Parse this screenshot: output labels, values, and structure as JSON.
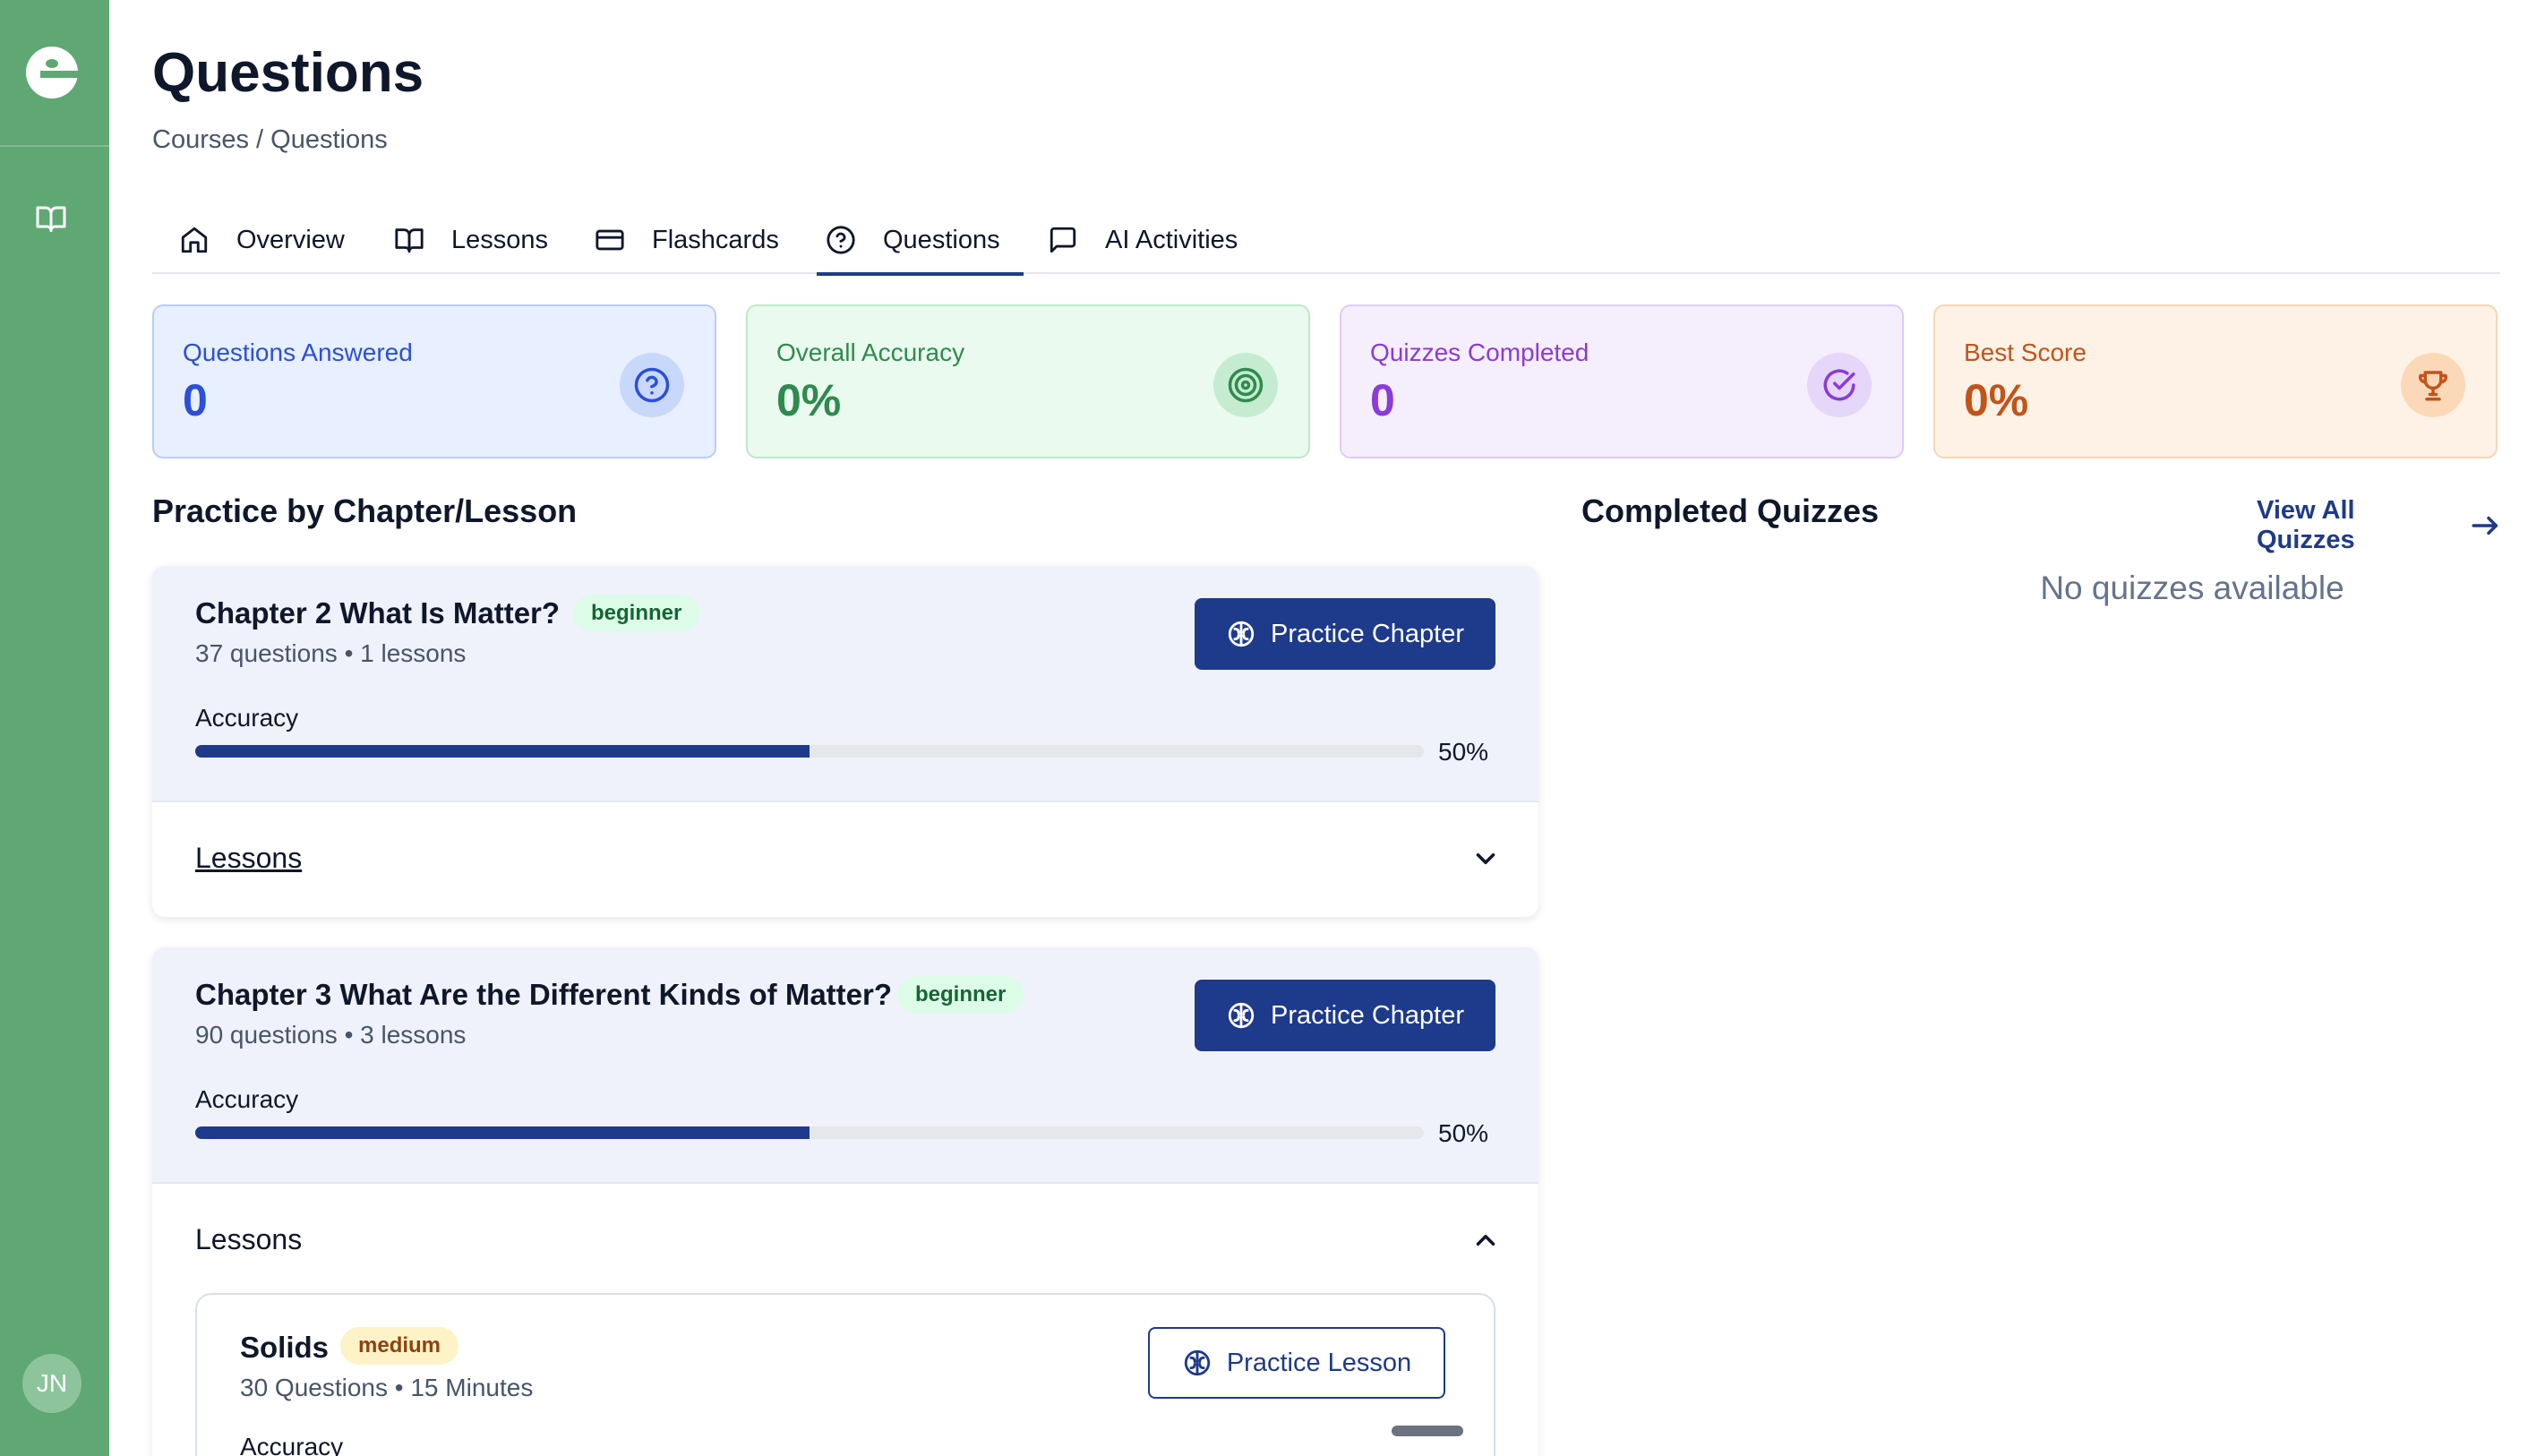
{
  "sidebar": {
    "avatar_initials": "JN",
    "icons": [
      "app-logo-icon",
      "book-icon"
    ]
  },
  "page": {
    "title": "Questions",
    "breadcrumb": "Courses / Questions"
  },
  "tabs": [
    {
      "label": "Overview",
      "icon": "home-icon",
      "active": false
    },
    {
      "label": "Lessons",
      "icon": "book-icon",
      "active": false
    },
    {
      "label": "Flashcards",
      "icon": "card-icon",
      "active": false
    },
    {
      "label": "Questions",
      "icon": "question-circle-icon",
      "active": true
    },
    {
      "label": "AI Activities",
      "icon": "message-icon",
      "active": false
    }
  ],
  "stats": [
    {
      "label": "Questions Answered",
      "value": "0",
      "icon": "question-circle-icon",
      "color": "#2b4fd8"
    },
    {
      "label": "Overall Accuracy",
      "value": "0%",
      "icon": "target-icon",
      "color": "#2f8a4e"
    },
    {
      "label": "Quizzes Completed",
      "value": "0",
      "icon": "check-circle-icon",
      "color": "#8a3bd8"
    },
    {
      "label": "Best Score",
      "value": "0%",
      "icon": "trophy-icon",
      "color": "#c2541a"
    }
  ],
  "practice": {
    "title": "Practice by Chapter/Lesson",
    "chapters": [
      {
        "name": "Chapter 2 What Is Matter?",
        "level": "beginner",
        "meta": "37 questions • 1 lessons",
        "button": "Practice Chapter",
        "accuracy_label": "Accuracy",
        "accuracy": 0.5,
        "accuracy_text": "50%",
        "lessons_label": "Lessons",
        "lessons_expanded": false
      },
      {
        "name": "Chapter 3 What Are the Different Kinds of Matter?",
        "level": "beginner",
        "meta": "90 questions • 3 lessons",
        "button": "Practice Chapter",
        "accuracy_label": "Accuracy",
        "accuracy": 0.5,
        "accuracy_text": "50%",
        "lessons_label": "Lessons",
        "lessons_expanded": true,
        "lessons": [
          {
            "name": "Solids",
            "level": "medium",
            "meta": "30 Questions • 15 Minutes",
            "button": "Practice Lesson",
            "accuracy_label": "Accuracy"
          }
        ]
      }
    ]
  },
  "completed": {
    "title": "Completed Quizzes",
    "view_all": "View All Quizzes",
    "empty": "No quizzes available"
  },
  "colors": {
    "sidebar": "#5fa873",
    "primary": "#1e3a8a"
  }
}
